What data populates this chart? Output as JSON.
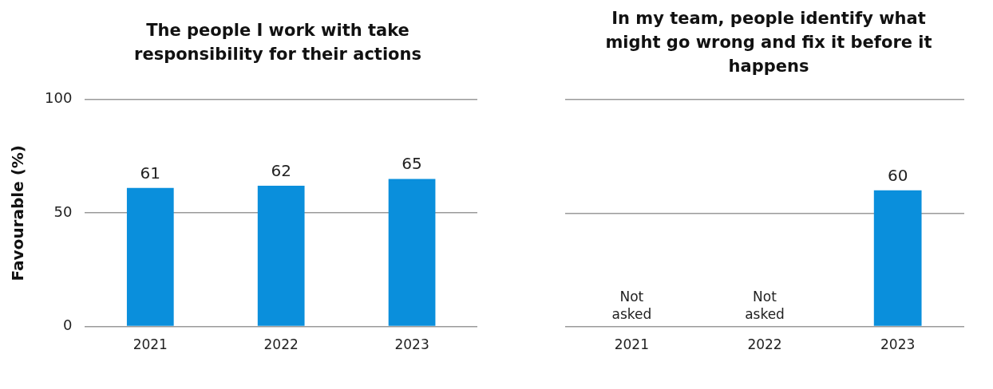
{
  "chart_data": [
    {
      "type": "bar",
      "title": "The people I work with take responsibility for their actions",
      "ylabel": "Favourable (%)",
      "categories": [
        "2021",
        "2022",
        "2023"
      ],
      "values": [
        61,
        62,
        65
      ],
      "color": "#0a8fdc",
      "ylim": [
        0,
        100
      ],
      "yticks": [
        0,
        50,
        100
      ],
      "grid": "y",
      "data_labels": true
    },
    {
      "type": "bar",
      "title": "In my team, people identify what might go wrong and fix it before it happens",
      "categories": [
        "2021",
        "2022",
        "2023"
      ],
      "values": [
        null,
        null,
        60
      ],
      "value_labels": [
        "Not asked",
        "Not asked",
        "60"
      ],
      "color": "#0a8fdc",
      "ylim": [
        0,
        100
      ],
      "yticks": [
        0,
        50,
        100
      ],
      "grid": "y",
      "tick_labels": "x"
    }
  ]
}
